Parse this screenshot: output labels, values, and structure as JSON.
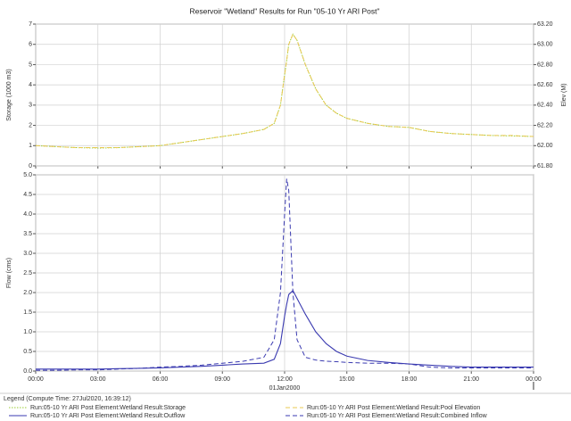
{
  "chart_data": [
    {
      "type": "line",
      "title": "Reservoir \"Wetland\" Results for Run \"05-10 Yr ARI Post\"",
      "ylabel": "Storage (1000 m3)",
      "y2label": "Elev (M)",
      "x": [
        0,
        1,
        2,
        3,
        4,
        5,
        6,
        7,
        8,
        9,
        10,
        11,
        11.5,
        11.8,
        12,
        12.1,
        12.2,
        12.4,
        12.6,
        13,
        13.5,
        14,
        14.5,
        15,
        16,
        17,
        18,
        19,
        20,
        21,
        22,
        23,
        24
      ],
      "xlim": [
        0,
        24
      ],
      "xticks": [
        0,
        3,
        6,
        9,
        12,
        15,
        18,
        21,
        24
      ],
      "ylim": [
        0,
        7
      ],
      "yticks": [
        0,
        1,
        2,
        3,
        4,
        5,
        6,
        7
      ],
      "y2lim": [
        61.8,
        63.2
      ],
      "y2ticks": [
        {
          "value": 61.8,
          "label": "61.80"
        },
        {
          "value": 62.0,
          "label": "62.00"
        },
        {
          "value": 62.2,
          "label": "62.20"
        },
        {
          "value": 62.4,
          "label": "62.40"
        },
        {
          "value": 62.6,
          "label": "62.60"
        },
        {
          "value": 62.8,
          "label": "62.80"
        },
        {
          "value": 63.0,
          "label": "63.00"
        },
        {
          "value": 63.2,
          "label": "63.20"
        }
      ],
      "grid": true,
      "series": [
        {
          "name": "Run:05-10 Yr ARI Post Element:Wetland Result:Storage",
          "color": "#9acd32",
          "style": "dotted",
          "values": [
            1.0,
            0.95,
            0.9,
            0.88,
            0.9,
            0.95,
            1.0,
            1.15,
            1.3,
            1.45,
            1.6,
            1.8,
            2.1,
            3.0,
            4.5,
            5.2,
            6.0,
            6.5,
            6.2,
            5.0,
            3.8,
            3.0,
            2.6,
            2.35,
            2.1,
            1.95,
            1.9,
            1.7,
            1.6,
            1.55,
            1.5,
            1.48,
            1.45
          ]
        },
        {
          "name": "Run:05-10 Yr ARI Post Element:Wetland Result:Pool Elevation",
          "color": "#e8c850",
          "style": "dashed",
          "axis": "y2",
          "values": [
            62.0,
            61.99,
            61.98,
            61.98,
            61.98,
            61.99,
            62.0,
            62.03,
            62.06,
            62.09,
            62.12,
            62.16,
            62.22,
            62.4,
            62.7,
            62.84,
            63.0,
            63.1,
            63.04,
            62.8,
            62.56,
            62.4,
            62.32,
            62.27,
            62.22,
            62.19,
            62.18,
            62.14,
            62.12,
            62.11,
            62.1,
            62.1,
            62.09
          ]
        }
      ]
    },
    {
      "type": "line",
      "ylabel": "Flow (cms)",
      "xlabel": "01Jan2000",
      "legend_title": "Legend (Compute Time: 27Jul2020, 16:39:12)",
      "x": [
        0,
        1,
        2,
        3,
        4,
        5,
        6,
        7,
        8,
        9,
        10,
        11,
        11.5,
        11.8,
        12,
        12.1,
        12.2,
        12.4,
        12.6,
        13,
        13.5,
        14,
        14.5,
        15,
        16,
        17,
        18,
        19,
        20,
        21,
        22,
        23,
        24
      ],
      "xlim": [
        0,
        24
      ],
      "xticks": [
        {
          "value": 0,
          "label": "00:00"
        },
        {
          "value": 3,
          "label": "03:00"
        },
        {
          "value": 6,
          "label": "06:00"
        },
        {
          "value": 9,
          "label": "09:00"
        },
        {
          "value": 12,
          "label": "12:00"
        },
        {
          "value": 15,
          "label": "15:00"
        },
        {
          "value": 18,
          "label": "18:00"
        },
        {
          "value": 21,
          "label": "21:00"
        },
        {
          "value": 24,
          "label": "00:00"
        }
      ],
      "ylim": [
        0,
        5
      ],
      "yticks": [
        {
          "value": 0,
          "label": "0.0"
        },
        {
          "value": 0.5,
          "label": "0.5"
        },
        {
          "value": 1,
          "label": "1.0"
        },
        {
          "value": 1.5,
          "label": "1.5"
        },
        {
          "value": 2,
          "label": "2.0"
        },
        {
          "value": 2.5,
          "label": "2.5"
        },
        {
          "value": 3,
          "label": "3.0"
        },
        {
          "value": 3.5,
          "label": "3.5"
        },
        {
          "value": 4,
          "label": "4.0"
        },
        {
          "value": 4.5,
          "label": "4.5"
        },
        {
          "value": 5,
          "label": "5.0"
        }
      ],
      "grid": true,
      "series": [
        {
          "name": "Run:05-10 Yr ARI Post Element:Wetland Result:Outflow",
          "color": "#3a3ab0",
          "style": "solid",
          "values": [
            0.05,
            0.05,
            0.05,
            0.05,
            0.06,
            0.07,
            0.08,
            0.1,
            0.12,
            0.15,
            0.18,
            0.2,
            0.3,
            0.7,
            1.4,
            1.7,
            1.95,
            2.05,
            1.85,
            1.45,
            1.0,
            0.7,
            0.5,
            0.38,
            0.27,
            0.22,
            0.18,
            0.15,
            0.12,
            0.1,
            0.1,
            0.1,
            0.1
          ]
        },
        {
          "name": "Run:05-10 Yr ARI Post Element:Wetland Result:Combined Inflow",
          "color": "#3a3ab0",
          "style": "dashed",
          "values": [
            0.02,
            0.02,
            0.03,
            0.03,
            0.05,
            0.07,
            0.1,
            0.12,
            0.15,
            0.2,
            0.25,
            0.35,
            0.8,
            2.0,
            4.0,
            4.9,
            4.6,
            2.0,
            0.8,
            0.35,
            0.28,
            0.25,
            0.24,
            0.22,
            0.2,
            0.2,
            0.18,
            0.1,
            0.08,
            0.08,
            0.08,
            0.08,
            0.08
          ]
        }
      ]
    }
  ]
}
